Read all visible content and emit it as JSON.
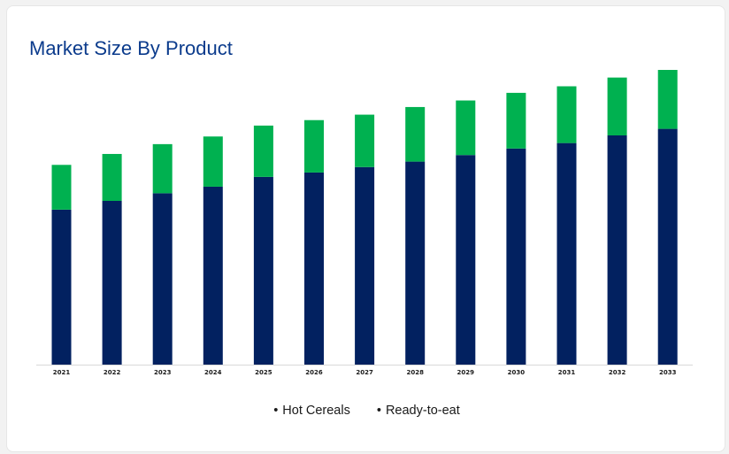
{
  "title": "Market Size By Product",
  "colors": {
    "hot_cereals": "#022160",
    "ready_to_eat": "#00b150",
    "axis": "#d9d9d9"
  },
  "legend": [
    {
      "bullet": "•",
      "label": "Hot Cereals"
    },
    {
      "bullet": "•",
      "label": "Ready-to-eat"
    }
  ],
  "chart_data": {
    "type": "bar",
    "stacked": true,
    "categories": [
      "2021",
      "2022",
      "2023",
      "2024",
      "2025",
      "2026",
      "2027",
      "2028",
      "2029",
      "2030",
      "2031",
      "2032",
      "2033"
    ],
    "series": [
      {
        "name": "Hot Cereals",
        "values": [
          142,
          150,
          157,
          163,
          172,
          176,
          181,
          186,
          192,
          198,
          203,
          210,
          216
        ]
      },
      {
        "name": "Ready-to-eat",
        "values": [
          41,
          43,
          45,
          46,
          47,
          48,
          48,
          50,
          50,
          51,
          52,
          53,
          54
        ]
      }
    ],
    "ylim": [
      0,
      300
    ],
    "grid": false,
    "legend_position": "bottom"
  }
}
